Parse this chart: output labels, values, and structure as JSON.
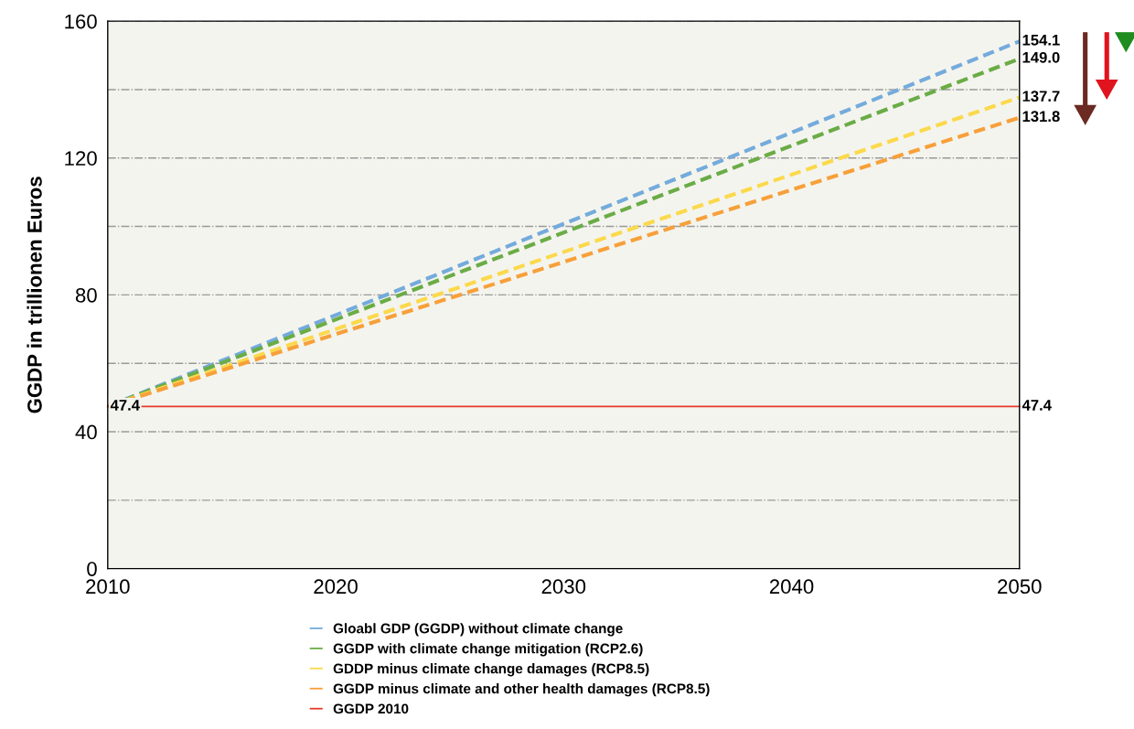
{
  "chart_data": {
    "type": "line",
    "ylabel": "GGDP in trillionen Euros",
    "x": [
      2010,
      2050
    ],
    "xlim": [
      2010,
      2050
    ],
    "xticks": [
      2010,
      2020,
      2030,
      2040,
      2050
    ],
    "ylim": [
      0,
      160
    ],
    "yticks": [
      0,
      {
        "value": 20,
        "label": null
      },
      40,
      {
        "value": 60,
        "label": null
      },
      80,
      {
        "value": 100,
        "label": null
      },
      120,
      {
        "value": 140,
        "label": null
      },
      160
    ],
    "grid": "y",
    "legend": "bottom",
    "marker": "none",
    "series": [
      {
        "name": "Gloabl GDP (GGDP) without climate change",
        "color": "#74abdc",
        "values": [
          47.4,
          154.1
        ],
        "line_style": "dashed",
        "value_labels": [
          null,
          "154.1"
        ]
      },
      {
        "name": "GGDP with climate change mitigation (RCP2.6)",
        "color": "#6aac46",
        "values": [
          47.4,
          149.0
        ],
        "line_style": "dashed",
        "value_labels": [
          null,
          "149.0"
        ]
      },
      {
        "name": "GDDP minus climate change damages (RCP8.5)",
        "color": "#fbd94c",
        "values": [
          47.4,
          137.7
        ],
        "line_style": "dashed",
        "value_labels": [
          null,
          "137.7"
        ]
      },
      {
        "name": "GGDP minus climate and other health damages (RCP8.5)",
        "color": "#f7a03a",
        "values": [
          47.4,
          131.8
        ],
        "line_style": "dashed",
        "value_labels": [
          null,
          "131.8"
        ]
      },
      {
        "name": "GGDP 2010",
        "color": "#e8392b",
        "values": [
          47.4,
          47.4
        ],
        "line_style": "solid",
        "value_labels": [
          "47.4",
          "47.4"
        ]
      }
    ]
  }
}
